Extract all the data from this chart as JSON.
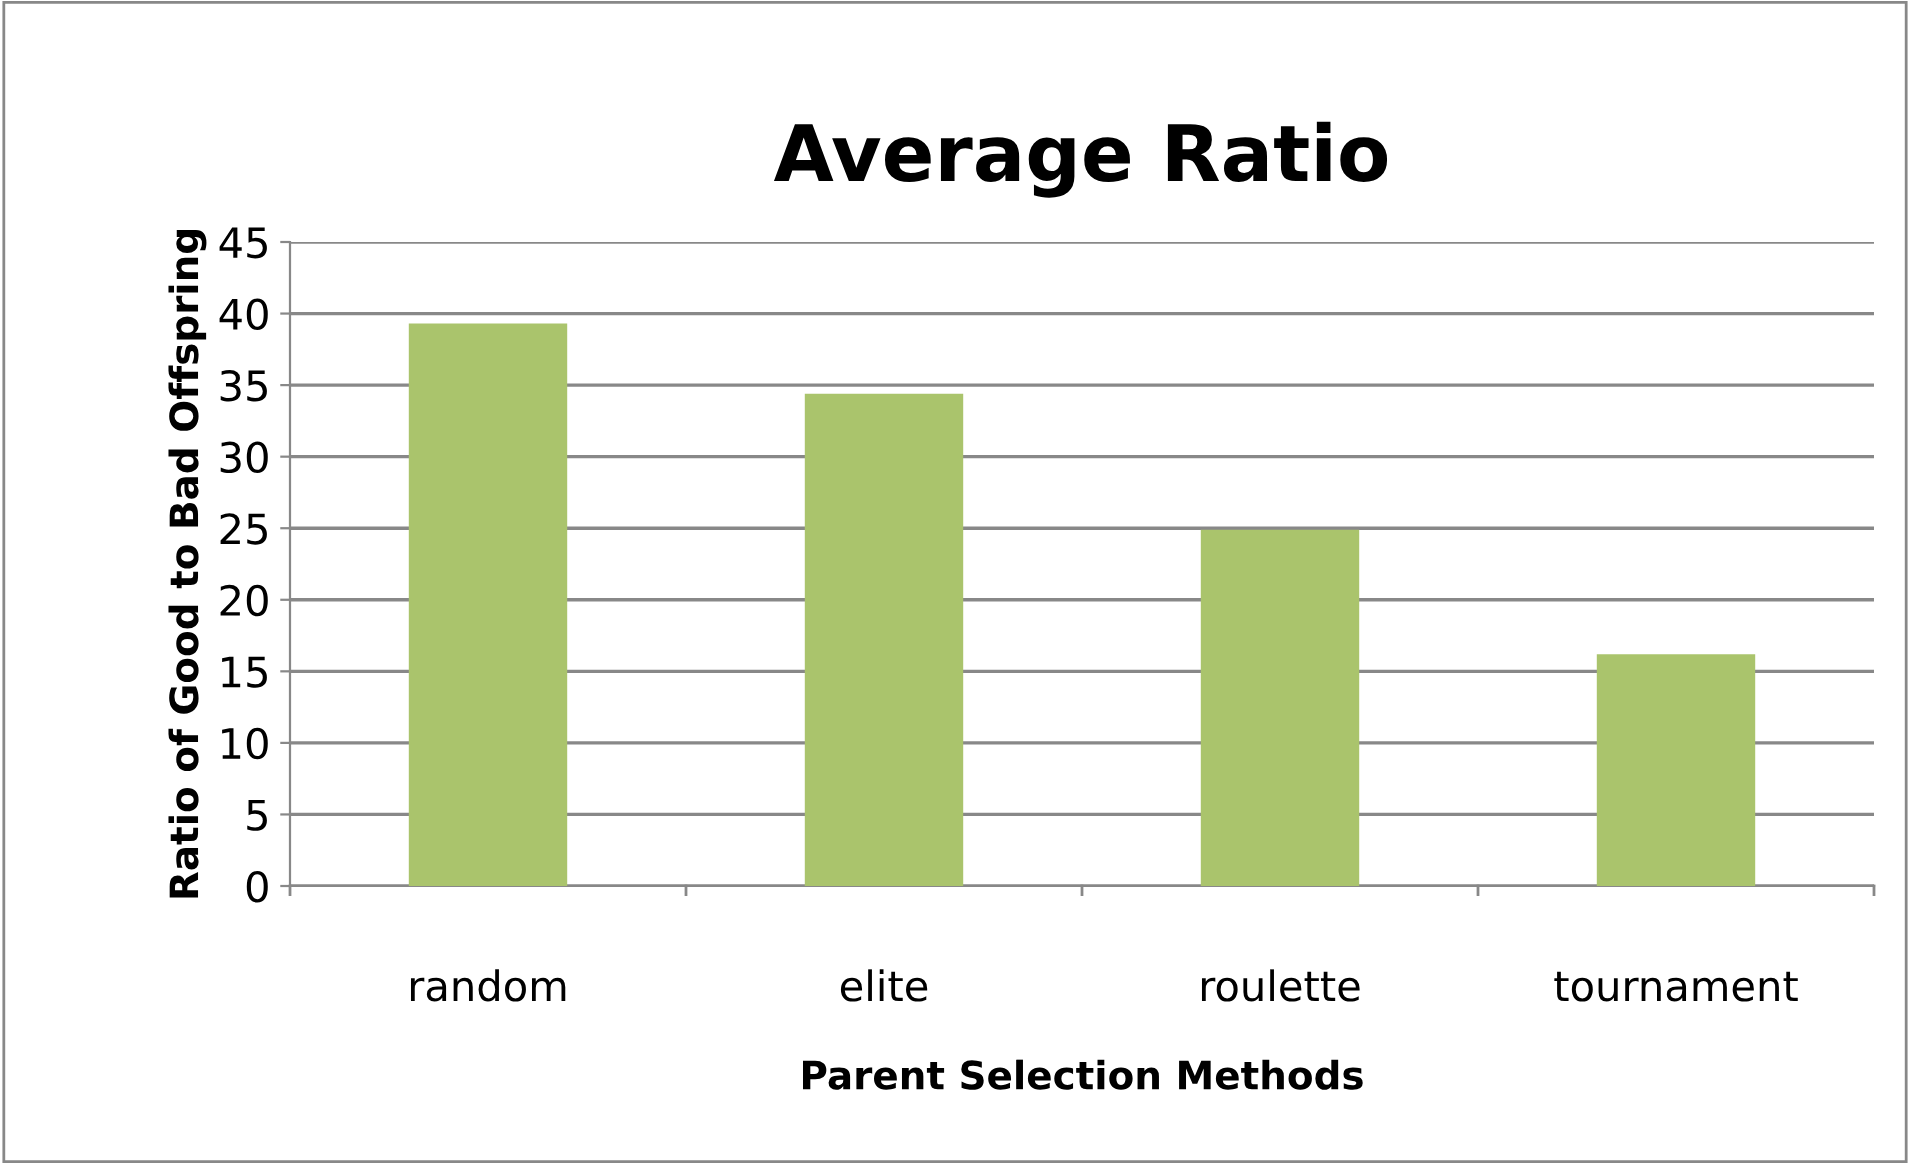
{
  "chart_data": {
    "type": "bar",
    "title": "Average Ratio",
    "xlabel": "Parent Selection Methods",
    "ylabel": "Ratio of Good to Bad Offspring",
    "categories": [
      "random",
      "elite",
      "roulette",
      "tournament"
    ],
    "values": [
      39.3,
      34.4,
      24.9,
      16.2
    ],
    "color": "#aac46c",
    "ylim": [
      0,
      45
    ],
    "yticks": [
      0,
      5,
      10,
      15,
      20,
      25,
      30,
      35,
      40,
      45
    ],
    "grid": "y",
    "legend": false
  }
}
